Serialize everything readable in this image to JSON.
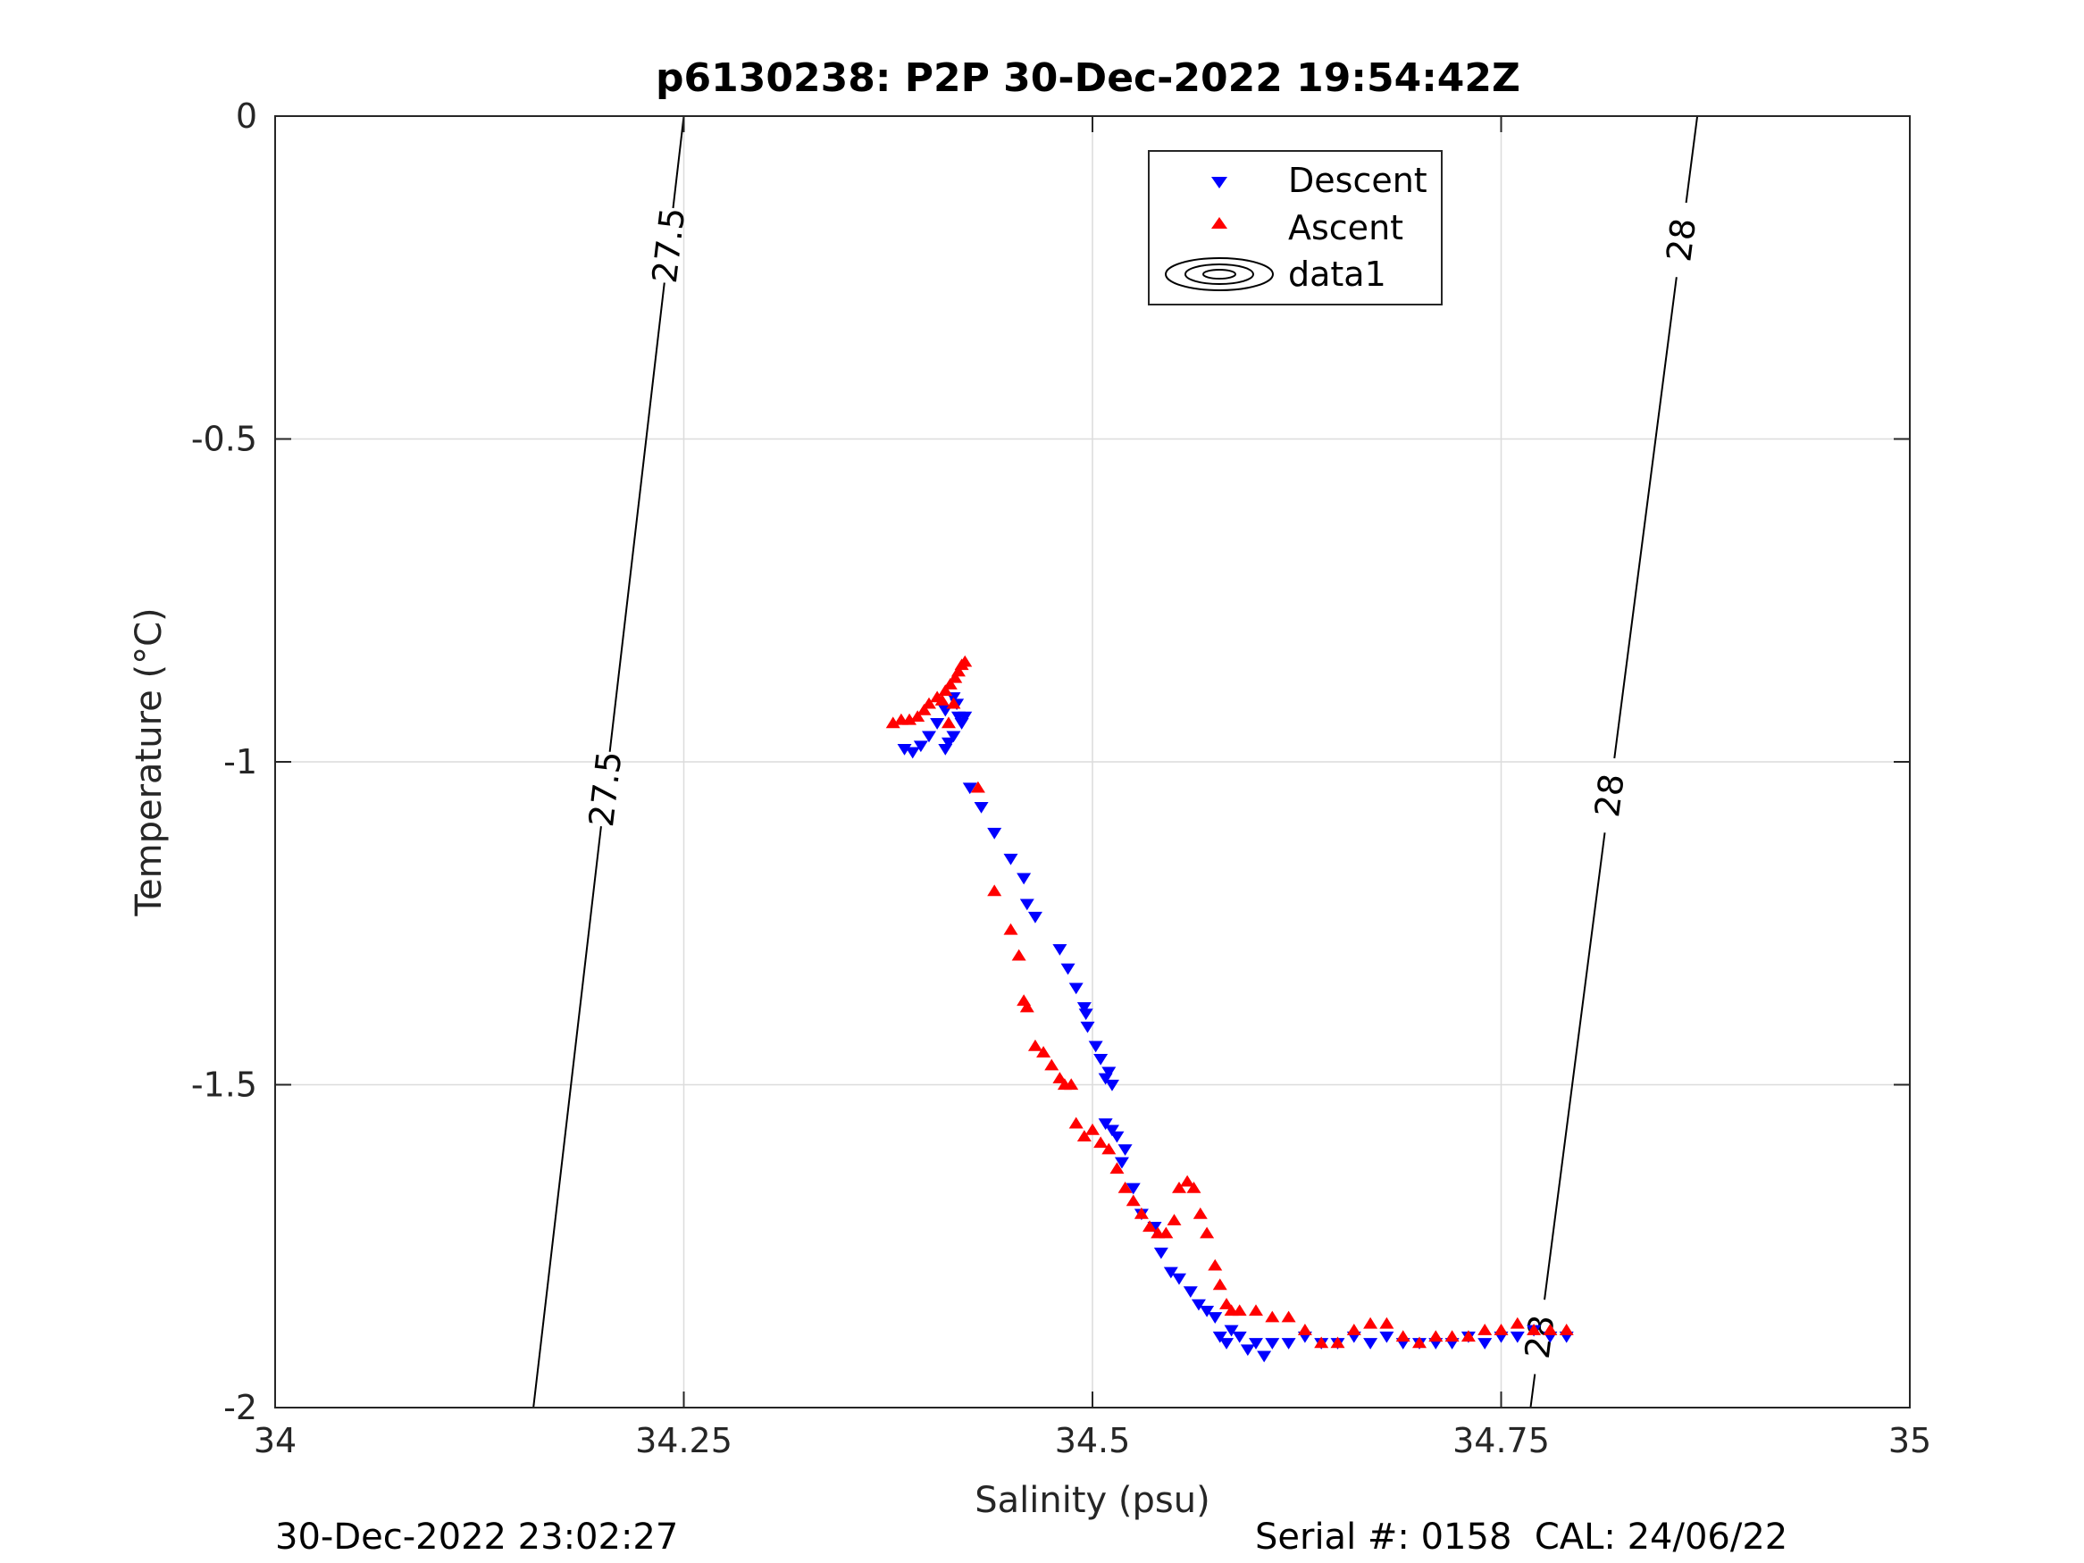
{
  "chart_data": {
    "type": "scatter",
    "title": "p6130238: P2P 30-Dec-2022 19:54:42Z",
    "xlabel": "Salinity (psu)",
    "ylabel": "Temperature (°C)",
    "xlim": [
      34,
      35
    ],
    "ylim": [
      -2,
      0
    ],
    "x_ticks": [
      34,
      34.25,
      34.5,
      34.75,
      35
    ],
    "x_tick_labels": [
      "34",
      "34.25",
      "34.5",
      "34.75",
      "35"
    ],
    "y_ticks": [
      0,
      -0.5,
      -1,
      -1.5,
      -2
    ],
    "y_tick_labels": [
      "0",
      "-0.5",
      "-1",
      "-1.5",
      "-2"
    ],
    "grid": true,
    "legend": {
      "position": "top-center",
      "entries": [
        "Descent",
        "Ascent",
        "data1"
      ]
    },
    "series": [
      {
        "name": "Descent",
        "marker": "triangle-down",
        "color": "#0000ff",
        "points": [
          [
            34.385,
            -0.98
          ],
          [
            34.39,
            -0.985
          ],
          [
            34.395,
            -0.975
          ],
          [
            34.4,
            -0.96
          ],
          [
            34.405,
            -0.94
          ],
          [
            34.41,
            -0.92
          ],
          [
            34.415,
            -0.9
          ],
          [
            34.418,
            -0.93
          ],
          [
            34.42,
            -0.94
          ],
          [
            34.422,
            -0.93
          ],
          [
            34.412,
            -0.97
          ],
          [
            34.415,
            -0.96
          ],
          [
            34.41,
            -0.98
          ],
          [
            34.417,
            -0.91
          ],
          [
            34.425,
            -1.04
          ],
          [
            34.432,
            -1.07
          ],
          [
            34.44,
            -1.11
          ],
          [
            34.45,
            -1.15
          ],
          [
            34.458,
            -1.18
          ],
          [
            34.46,
            -1.22
          ],
          [
            34.465,
            -1.24
          ],
          [
            34.48,
            -1.29
          ],
          [
            34.485,
            -1.32
          ],
          [
            34.49,
            -1.35
          ],
          [
            34.495,
            -1.38
          ],
          [
            34.496,
            -1.39
          ],
          [
            34.497,
            -1.41
          ],
          [
            34.502,
            -1.44
          ],
          [
            34.505,
            -1.46
          ],
          [
            34.508,
            -1.49
          ],
          [
            34.51,
            -1.48
          ],
          [
            34.512,
            -1.5
          ],
          [
            34.508,
            -1.56
          ],
          [
            34.512,
            -1.57
          ],
          [
            34.515,
            -1.58
          ],
          [
            34.52,
            -1.6
          ],
          [
            34.518,
            -1.62
          ],
          [
            34.525,
            -1.66
          ],
          [
            34.53,
            -1.7
          ],
          [
            34.538,
            -1.72
          ],
          [
            34.542,
            -1.76
          ],
          [
            34.548,
            -1.79
          ],
          [
            34.553,
            -1.8
          ],
          [
            34.56,
            -1.82
          ],
          [
            34.565,
            -1.84
          ],
          [
            34.57,
            -1.85
          ],
          [
            34.575,
            -1.86
          ],
          [
            34.578,
            -1.89
          ],
          [
            34.582,
            -1.9
          ],
          [
            34.585,
            -1.88
          ],
          [
            34.59,
            -1.89
          ],
          [
            34.595,
            -1.91
          ],
          [
            34.6,
            -1.9
          ],
          [
            34.605,
            -1.92
          ],
          [
            34.61,
            -1.9
          ],
          [
            34.62,
            -1.9
          ],
          [
            34.63,
            -1.89
          ],
          [
            34.64,
            -1.9
          ],
          [
            34.65,
            -1.9
          ],
          [
            34.66,
            -1.89
          ],
          [
            34.67,
            -1.9
          ],
          [
            34.68,
            -1.89
          ],
          [
            34.69,
            -1.9
          ],
          [
            34.7,
            -1.9
          ],
          [
            34.71,
            -1.9
          ],
          [
            34.72,
            -1.9
          ],
          [
            34.73,
            -1.89
          ],
          [
            34.74,
            -1.9
          ],
          [
            34.75,
            -1.89
          ],
          [
            34.76,
            -1.89
          ],
          [
            34.77,
            -1.88
          ],
          [
            34.78,
            -1.89
          ],
          [
            34.79,
            -1.89
          ]
        ]
      },
      {
        "name": "Ascent",
        "marker": "triangle-up",
        "color": "#ff0000",
        "points": [
          [
            34.378,
            -0.94
          ],
          [
            34.383,
            -0.935
          ],
          [
            34.388,
            -0.935
          ],
          [
            34.393,
            -0.93
          ],
          [
            34.397,
            -0.92
          ],
          [
            34.4,
            -0.91
          ],
          [
            34.405,
            -0.9
          ],
          [
            34.41,
            -0.89
          ],
          [
            34.413,
            -0.88
          ],
          [
            34.416,
            -0.87
          ],
          [
            34.418,
            -0.86
          ],
          [
            34.42,
            -0.85
          ],
          [
            34.422,
            -0.845
          ],
          [
            34.415,
            -0.91
          ],
          [
            34.412,
            -0.94
          ],
          [
            34.408,
            -0.905
          ],
          [
            34.43,
            -1.04
          ],
          [
            34.44,
            -1.2
          ],
          [
            34.45,
            -1.26
          ],
          [
            34.455,
            -1.3
          ],
          [
            34.458,
            -1.37
          ],
          [
            34.46,
            -1.38
          ],
          [
            34.465,
            -1.44
          ],
          [
            34.47,
            -1.45
          ],
          [
            34.475,
            -1.47
          ],
          [
            34.48,
            -1.49
          ],
          [
            34.483,
            -1.5
          ],
          [
            34.487,
            -1.5
          ],
          [
            34.49,
            -1.56
          ],
          [
            34.495,
            -1.58
          ],
          [
            34.5,
            -1.57
          ],
          [
            34.505,
            -1.59
          ],
          [
            34.51,
            -1.6
          ],
          [
            34.515,
            -1.63
          ],
          [
            34.52,
            -1.66
          ],
          [
            34.525,
            -1.68
          ],
          [
            34.53,
            -1.7
          ],
          [
            34.535,
            -1.72
          ],
          [
            34.54,
            -1.73
          ],
          [
            34.545,
            -1.73
          ],
          [
            34.55,
            -1.71
          ],
          [
            34.553,
            -1.66
          ],
          [
            34.558,
            -1.65
          ],
          [
            34.562,
            -1.66
          ],
          [
            34.566,
            -1.7
          ],
          [
            34.57,
            -1.73
          ],
          [
            34.575,
            -1.78
          ],
          [
            34.578,
            -1.81
          ],
          [
            34.582,
            -1.84
          ],
          [
            34.585,
            -1.85
          ],
          [
            34.59,
            -1.85
          ],
          [
            34.6,
            -1.85
          ],
          [
            34.61,
            -1.86
          ],
          [
            34.62,
            -1.86
          ],
          [
            34.63,
            -1.88
          ],
          [
            34.64,
            -1.9
          ],
          [
            34.65,
            -1.9
          ],
          [
            34.66,
            -1.88
          ],
          [
            34.67,
            -1.87
          ],
          [
            34.68,
            -1.87
          ],
          [
            34.69,
            -1.89
          ],
          [
            34.7,
            -1.9
          ],
          [
            34.71,
            -1.89
          ],
          [
            34.72,
            -1.89
          ],
          [
            34.73,
            -1.89
          ],
          [
            34.74,
            -1.88
          ],
          [
            34.75,
            -1.88
          ],
          [
            34.76,
            -1.87
          ],
          [
            34.77,
            -1.88
          ],
          [
            34.78,
            -1.88
          ],
          [
            34.79,
            -1.88
          ]
        ]
      }
    ],
    "contours": [
      {
        "level_label": "27.5",
        "points": [
          [
            34.158,
            -2
          ],
          [
            34.25,
            0
          ]
        ],
        "label_positions": [
          [
            34.195,
            -1.04
          ],
          [
            34.24,
            -0.2
          ]
        ]
      },
      {
        "level_label": "28",
        "points": [
          [
            34.768,
            -2
          ],
          [
            34.87,
            0
          ]
        ],
        "label_positions": [
          [
            34.772,
            -1.89
          ],
          [
            34.81,
            -1.05
          ],
          [
            34.855,
            -0.19
          ]
        ]
      }
    ]
  },
  "footer": {
    "left": "30-Dec-2022 23:02:27",
    "right": "Serial #: 0158  CAL: 24/06/22"
  }
}
